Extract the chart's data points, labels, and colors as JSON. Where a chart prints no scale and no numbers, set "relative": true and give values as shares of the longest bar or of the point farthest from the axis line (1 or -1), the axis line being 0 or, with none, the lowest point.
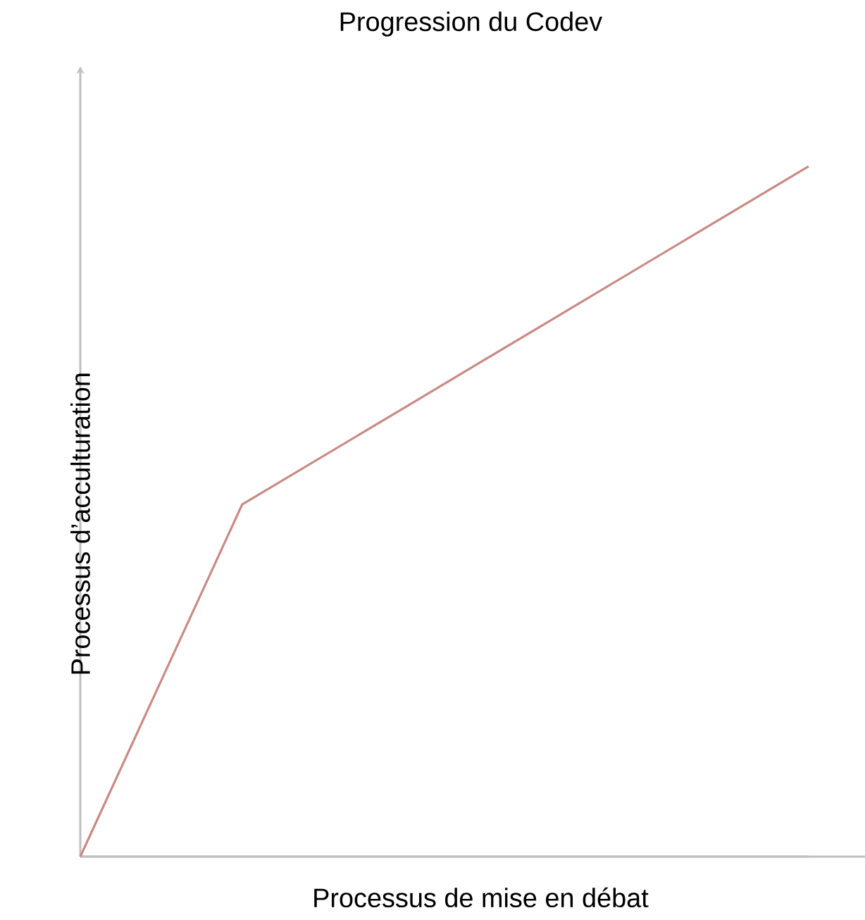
{
  "chart_data": {
    "type": "line",
    "title": "Progression du Codev",
    "xlabel": "Processus de mise en débat",
    "ylabel": "Processus d’acculturation",
    "relative": true,
    "categories": [
      null,
      null,
      null,
      null,
      null,
      null,
      null,
      null,
      null,
      null
    ],
    "series": [
      {
        "color": "#c98a84",
        "values": [
          0,
          0.255,
          0.51,
          0.58,
          0.65,
          0.72,
          0.79,
          0.86,
          0.93,
          1
        ]
      }
    ],
    "marker": "none",
    "line_style": "solid"
  }
}
